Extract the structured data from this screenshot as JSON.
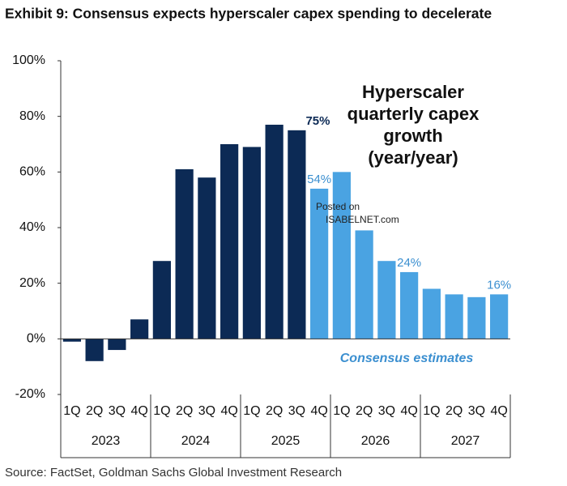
{
  "chart_data": {
    "type": "bar",
    "title": "Exhibit 9: Consensus expects hyperscaler capex spending to decelerate",
    "categories": [
      "1Q",
      "2Q",
      "3Q",
      "4Q",
      "1Q",
      "2Q",
      "3Q",
      "4Q",
      "1Q",
      "2Q",
      "3Q",
      "4Q",
      "1Q",
      "2Q",
      "3Q",
      "4Q",
      "1Q",
      "2Q",
      "3Q",
      "4Q"
    ],
    "groups": [
      "2023",
      "2024",
      "2025",
      "2026",
      "2027"
    ],
    "values": [
      -1,
      -8,
      -4,
      7,
      28,
      61,
      58,
      70,
      69,
      77,
      75,
      54,
      60,
      39,
      28,
      24,
      18,
      16,
      15,
      16
    ],
    "value_labels": [
      null,
      null,
      null,
      null,
      null,
      null,
      null,
      null,
      null,
      null,
      "75%",
      "54%",
      null,
      null,
      null,
      "24%",
      null,
      null,
      null,
      "16%"
    ],
    "colors": [
      "#0c2a55",
      "#0c2a55",
      "#0c2a55",
      "#0c2a55",
      "#0c2a55",
      "#0c2a55",
      "#0c2a55",
      "#0c2a55",
      "#0c2a55",
      "#0c2a55",
      "#0c2a55",
      "#4aa3e2",
      "#4aa3e2",
      "#4aa3e2",
      "#4aa3e2",
      "#4aa3e2",
      "#4aa3e2",
      "#4aa3e2",
      "#4aa3e2",
      "#4aa3e2"
    ],
    "ylim": [
      -20,
      100
    ],
    "yticks": [
      {
        "value": -20,
        "label": "-20%"
      },
      {
        "value": 0,
        "label": "0%"
      },
      {
        "value": 20,
        "label": "20%"
      },
      {
        "value": 40,
        "label": "40%"
      },
      {
        "value": 60,
        "label": "60%"
      },
      {
        "value": 80,
        "label": "80%"
      },
      {
        "value": 100,
        "label": "100%"
      }
    ],
    "annotations": {
      "heading": [
        "Hyperscaler",
        "quarterly capex",
        "growth",
        "(year/year)"
      ],
      "estimates": "Consensus estimates",
      "watermark": [
        "Posted on",
        "ISABELNET.com"
      ]
    },
    "source": "Source: FactSet, Goldman Sachs Global Investment Research"
  }
}
